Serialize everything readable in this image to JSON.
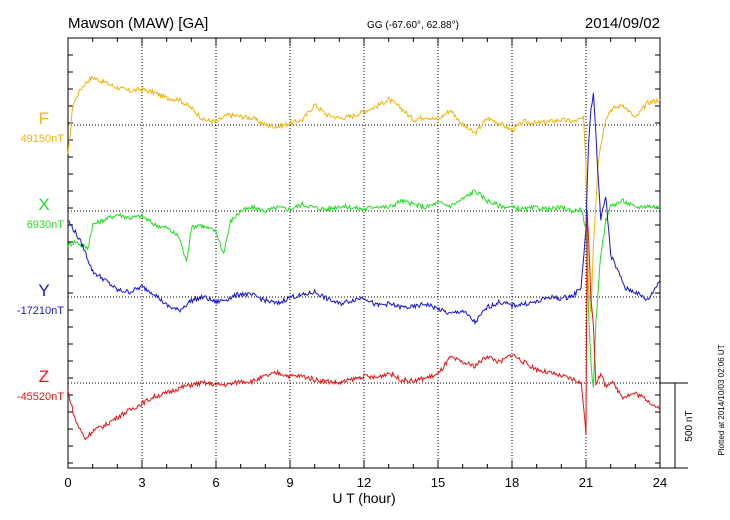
{
  "header": {
    "station": "Mawson (MAW)  [GA]",
    "coords": "GG (-67.60°,  62.88°)",
    "date": "2014/09/02"
  },
  "plotted_note": "Plotted at 2014/10/03 02:06 UT",
  "scale_bar": {
    "label": "500 nT",
    "value_nT": 500
  },
  "chart_data": {
    "type": "line",
    "xlabel": "U T (hour)",
    "xlim": [
      0,
      24
    ],
    "xticks": [
      "0",
      "3",
      "6",
      "9",
      "12",
      "15",
      "18",
      "21",
      "24"
    ],
    "grid": true,
    "series": [
      {
        "name": "F",
        "baseline": "49150nT",
        "color": "#f5b20a",
        "t": [
          0,
          0.2,
          0.5,
          0.8,
          1.0,
          1.5,
          2,
          2.5,
          3,
          3.5,
          4,
          4.5,
          5,
          5.5,
          6,
          6.5,
          7,
          7.5,
          8,
          8.5,
          9,
          9.5,
          10,
          10.5,
          11,
          11.5,
          12,
          12.5,
          13,
          13.5,
          14,
          14.5,
          15,
          15.5,
          16,
          16.5,
          17,
          17.5,
          18,
          18.5,
          19,
          19.5,
          20,
          20.5,
          20.9,
          21.0,
          21.1,
          21.2,
          21.3,
          21.5,
          21.8,
          22,
          22.5,
          23,
          23.5,
          24
        ],
        "v": [
          -180,
          120,
          210,
          260,
          280,
          250,
          220,
          200,
          210,
          190,
          160,
          150,
          100,
          30,
          20,
          60,
          50,
          40,
          0,
          -10,
          10,
          30,
          120,
          60,
          40,
          50,
          80,
          110,
          150,
          100,
          30,
          50,
          30,
          90,
          0,
          -50,
          40,
          10,
          -30,
          20,
          10,
          20,
          30,
          20,
          40,
          -250,
          -950,
          -1100,
          -700,
          -200,
          40,
          90,
          120,
          40,
          130,
          150
        ]
      },
      {
        "name": "X",
        "baseline": "6930nT",
        "color": "#22dd22",
        "t": [
          0,
          0.3,
          0.8,
          1.0,
          1.5,
          2,
          2.5,
          3,
          3.5,
          4,
          4.5,
          4.8,
          5,
          5.3,
          6,
          6.3,
          6.6,
          7,
          7.5,
          8,
          8.5,
          9,
          9.5,
          10,
          10.5,
          11,
          11.5,
          12,
          12.5,
          13,
          13.5,
          14,
          14.5,
          15,
          15.5,
          16,
          16.5,
          17,
          17.5,
          18,
          18.5,
          19,
          19.5,
          20,
          20.5,
          20.8,
          21.0,
          21.1,
          21.2,
          21.3,
          21.4,
          21.6,
          21.8,
          22,
          22.5,
          23,
          23.5,
          24
        ],
        "v": [
          -200,
          -180,
          -220,
          -80,
          -50,
          -20,
          -40,
          -30,
          -80,
          -100,
          -150,
          -300,
          -100,
          -80,
          -120,
          -250,
          -60,
          0,
          20,
          0,
          20,
          10,
          40,
          20,
          10,
          30,
          20,
          10,
          30,
          20,
          60,
          40,
          20,
          50,
          30,
          70,
          120,
          60,
          30,
          20,
          10,
          20,
          10,
          20,
          0,
          10,
          -100,
          -600,
          -900,
          -1050,
          -650,
          -250,
          -60,
          30,
          60,
          20,
          30,
          20
        ]
      },
      {
        "name": "Y",
        "baseline": "-17210nT",
        "color": "#1515dd",
        "t": [
          0,
          0.3,
          0.6,
          1.0,
          1.5,
          2,
          2.5,
          3,
          3.5,
          4,
          4.5,
          5,
          5.5,
          6,
          6.5,
          7,
          7.5,
          8,
          8.5,
          9,
          9.5,
          10,
          10.5,
          11,
          11.5,
          12,
          12.5,
          13,
          13.5,
          14,
          14.5,
          15,
          15.5,
          16,
          16.5,
          17,
          17.5,
          18,
          18.5,
          19,
          19.5,
          20,
          20.5,
          20.8,
          21.0,
          21.1,
          21.2,
          21.3,
          21.4,
          21.5,
          21.6,
          21.8,
          22,
          22.3,
          22.6,
          23,
          23.5,
          24
        ],
        "v": [
          450,
          380,
          300,
          150,
          100,
          40,
          30,
          60,
          20,
          -50,
          -80,
          -20,
          0,
          -30,
          -10,
          20,
          10,
          -20,
          -40,
          0,
          10,
          30,
          -10,
          -40,
          -20,
          0,
          -50,
          -40,
          -60,
          -60,
          -40,
          -70,
          -100,
          -80,
          -150,
          -60,
          -30,
          -50,
          -40,
          -30,
          0,
          -10,
          10,
          60,
          400,
          900,
          1100,
          1200,
          950,
          700,
          450,
          600,
          250,
          150,
          50,
          30,
          -20,
          100
        ]
      },
      {
        "name": "Z",
        "baseline": "-45520nT",
        "color": "#ee1111",
        "t": [
          0,
          0.3,
          0.7,
          1.0,
          1.5,
          2,
          2.5,
          3,
          3.5,
          4,
          4.5,
          5,
          5.5,
          6,
          6.5,
          7,
          7.5,
          8,
          8.5,
          9,
          9.5,
          10,
          10.5,
          11,
          11.5,
          12,
          12.5,
          13,
          13.5,
          14,
          14.5,
          15,
          15.5,
          16,
          16.5,
          17,
          17.5,
          18,
          18.5,
          19,
          19.5,
          20,
          20.5,
          20.8,
          20.95,
          21.0,
          21.05,
          21.1,
          21.2,
          21.3,
          21.4,
          21.6,
          21.8,
          22,
          22.5,
          23,
          23.5,
          24
        ],
        "v": [
          -50,
          -220,
          -330,
          -280,
          -250,
          -200,
          -160,
          -120,
          -80,
          -60,
          -30,
          -10,
          0,
          -10,
          -10,
          10,
          10,
          40,
          60,
          40,
          40,
          20,
          10,
          0,
          20,
          40,
          30,
          60,
          20,
          10,
          30,
          50,
          150,
          120,
          100,
          160,
          120,
          170,
          120,
          80,
          60,
          40,
          20,
          0,
          -200,
          -300,
          1000,
          850,
          500,
          350,
          0,
          50,
          -20,
          10,
          -80,
          -60,
          -100,
          -160
        ]
      }
    ]
  }
}
